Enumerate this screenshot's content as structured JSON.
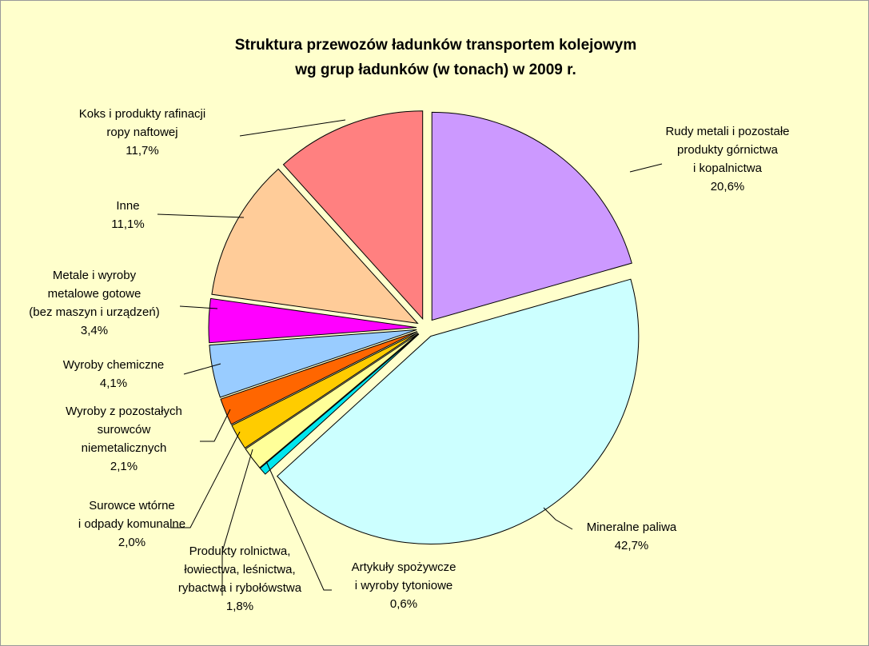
{
  "chart_data": {
    "type": "pie",
    "title": [
      "Struktura przewozów ładunków transportem kolejowym",
      "wg grup ładunków (w tonach) w 2009 r."
    ],
    "categories": [
      [
        "Rudy metali i pozostałe",
        "produkty górnictwa",
        "i kopalnictwa"
      ],
      [
        "Mineralne paliwa"
      ],
      [
        "Artykuły spożywcze",
        "i wyroby tytoniowe"
      ],
      [
        "Produkty rolnictwa,",
        "łowiectwa, leśnictwa,",
        "rybactwa i rybołówstwa"
      ],
      [
        "Surowce wtórne",
        "i odpady komunalne"
      ],
      [
        "Wyroby z pozostałych",
        "surowców",
        "niemetalicznych"
      ],
      [
        "Wyroby chemiczne"
      ],
      [
        "Metale i wyroby",
        "metalowe gotowe",
        "(bez maszyn i urządzeń)"
      ],
      [
        "Inne"
      ],
      [
        "Koks i produkty rafinacji",
        "ropy naftowej"
      ]
    ],
    "values": [
      20.6,
      42.7,
      0.6,
      1.8,
      2.0,
      2.1,
      4.1,
      3.4,
      11.1,
      11.7
    ],
    "value_labels": [
      "20,6%",
      "42,7%",
      "0,6%",
      "1,8%",
      "2,0%",
      "2,1%",
      "4,1%",
      "3,4%",
      "11,1%",
      "11,7%"
    ],
    "colors": [
      "#CC99FF",
      "#CCFFFF",
      "#00E5EE",
      "#FFFF99",
      "#FFCC00",
      "#FF6600",
      "#99CCFF",
      "#FF00FF",
      "#FFCC99",
      "#FF8080"
    ]
  }
}
